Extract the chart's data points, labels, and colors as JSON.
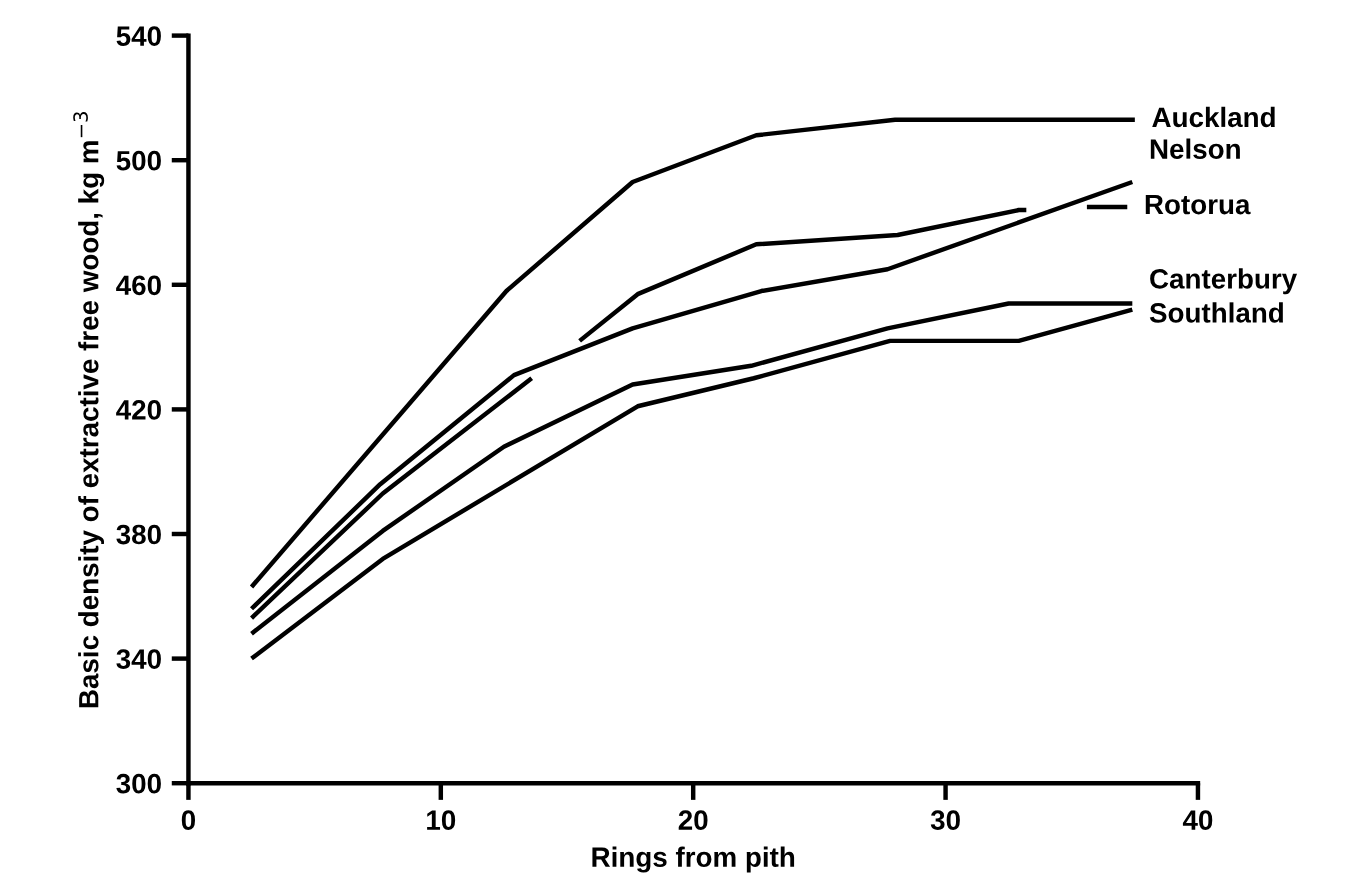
{
  "chart_data": {
    "type": "line",
    "xlabel": "Rings from pith",
    "ylabel": "Basic density of extractive free wood, kg m$^{−3}$",
    "xlim": [
      0,
      40
    ],
    "xticks": [
      0,
      10,
      20,
      30,
      40
    ],
    "ylim": [
      300,
      540
    ],
    "yticks": [
      300,
      340,
      380,
      420,
      460,
      500,
      540
    ],
    "grid": false,
    "legend": false,
    "marker": "none",
    "line_style": "solid",
    "series": [
      {
        "name": "Auckland",
        "color": "#000000",
        "x": [
          2.5,
          12.6,
          17.6,
          22.5,
          28,
          37.5
        ],
        "values": [
          363,
          458,
          493,
          508,
          513,
          513
        ]
      },
      {
        "name": "Nelson",
        "color": "#000000",
        "x": [
          2.5,
          7.6,
          12.9,
          17.6,
          22.7,
          27.7,
          37.4
        ],
        "values": [
          356,
          396,
          431,
          446,
          458,
          465,
          493
        ]
      },
      {
        "name": "Rotorua",
        "color": "#000000",
        "x": [
          2.5,
          7.7,
          13.6,
          14.5,
          15.5,
          17.8,
          22.5,
          28.1,
          32.9,
          33.2,
          34.4,
          35.6,
          37.2
        ],
        "values": [
          353,
          393,
          430,
          null,
          442,
          457,
          473,
          476,
          484,
          484,
          null,
          485,
          485
        ]
      },
      {
        "name": "Canterbury",
        "color": "#000000",
        "x": [
          2.5,
          7.7,
          12.5,
          17.6,
          22.3,
          27.7,
          32.5,
          37.4
        ],
        "values": [
          348,
          381,
          408,
          428,
          434,
          446,
          454,
          454
        ]
      },
      {
        "name": "Southland",
        "color": "#000000",
        "x": [
          2.5,
          7.7,
          17.8,
          22.4,
          27.8,
          32.9,
          37.4
        ],
        "values": [
          340,
          372,
          421,
          430,
          442,
          442,
          452
        ]
      }
    ]
  }
}
